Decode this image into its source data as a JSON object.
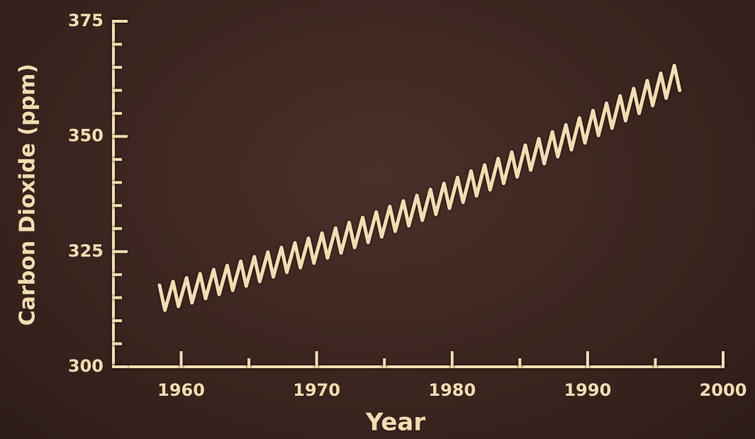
{
  "chart_data": {
    "type": "line",
    "x_label": "Year",
    "y_label": "Carbon Dioxide (ppm)",
    "x": [
      1958.4,
      1958.8,
      1959.4,
      1959.8,
      1960.4,
      1960.8,
      1961.4,
      1961.8,
      1962.4,
      1962.8,
      1963.4,
      1963.8,
      1964.4,
      1964.8,
      1965.4,
      1965.8,
      1966.4,
      1966.8,
      1967.4,
      1967.8,
      1968.4,
      1968.8,
      1969.4,
      1969.8,
      1970.4,
      1970.8,
      1971.4,
      1971.8,
      1972.4,
      1972.8,
      1973.4,
      1973.8,
      1974.4,
      1974.8,
      1975.4,
      1975.8,
      1976.4,
      1976.8,
      1977.4,
      1977.8,
      1978.4,
      1978.8,
      1979.4,
      1979.8,
      1980.4,
      1980.8,
      1981.4,
      1981.8,
      1982.4,
      1982.8,
      1983.4,
      1983.8,
      1984.4,
      1984.8,
      1985.4,
      1985.8,
      1986.4,
      1986.8,
      1987.4,
      1987.8,
      1988.4,
      1988.8,
      1989.4,
      1989.8,
      1990.4,
      1990.8,
      1991.4,
      1991.8,
      1992.4,
      1992.8,
      1993.4,
      1993.8,
      1994.4,
      1994.8,
      1995.4,
      1995.8,
      1996.4,
      1996.8
    ],
    "values": [
      317.7,
      312.3,
      318.5,
      313.1,
      319.3,
      313.9,
      320.2,
      314.8,
      321.1,
      315.7,
      322.0,
      316.6,
      322.9,
      317.5,
      323.9,
      318.5,
      324.9,
      319.5,
      325.9,
      320.5,
      326.9,
      321.5,
      327.9,
      322.5,
      329.0,
      323.6,
      330.1,
      324.7,
      331.3,
      325.9,
      332.4,
      327.0,
      333.6,
      328.2,
      334.8,
      329.4,
      336.0,
      330.6,
      337.2,
      331.8,
      338.5,
      333.1,
      339.8,
      334.4,
      341.1,
      335.7,
      342.5,
      337.1,
      343.8,
      338.4,
      345.2,
      339.8,
      346.6,
      341.2,
      348.1,
      342.7,
      349.5,
      344.1,
      351.0,
      345.6,
      352.5,
      347.1,
      354.0,
      348.6,
      355.6,
      350.2,
      357.2,
      351.8,
      358.8,
      353.4,
      360.4,
      355.0,
      362.1,
      356.7,
      363.7,
      358.3,
      365.4,
      360.0
    ],
    "color": "#f1ddb0",
    "xlim": [
      1955,
      2000
    ],
    "xticks": [
      1960,
      1970,
      1980,
      1990,
      2000
    ],
    "xminorticks": [
      1965,
      1975,
      1985,
      1995
    ],
    "ylim": [
      300,
      375
    ],
    "yticks": [
      300,
      325,
      350,
      375
    ],
    "yminorticks": [
      305,
      310,
      315,
      320,
      330,
      335,
      340,
      345,
      355,
      360,
      365,
      370
    ]
  }
}
